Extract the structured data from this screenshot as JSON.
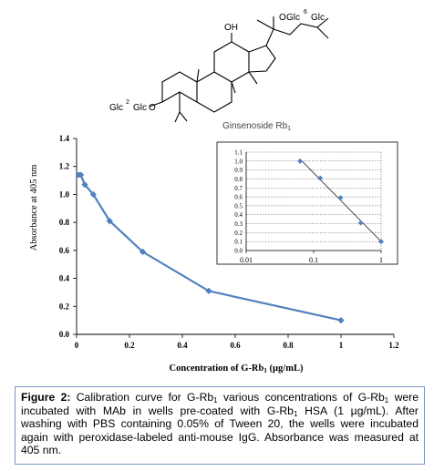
{
  "structure": {
    "compound_name": "Ginsenoside Rb",
    "compound_subscript": "1",
    "top_substituent_left": "O",
    "top_substituent_glc1": "Glc",
    "top_link": "6",
    "top_substituent_glc2": "Glc",
    "oh_label": "OH",
    "bottom_glc1": "Glc",
    "bottom_link": "2",
    "bottom_glc2": "Glc",
    "bottom_o": "O"
  },
  "chart_data": [
    {
      "type": "line",
      "title": "",
      "xlabel": "Concentration of G-Rb",
      "xlabel_subscript": "1",
      "xlabel_suffix": " (µg/mL)",
      "ylabel": "Absorbance at 405 nm",
      "xlim": [
        0,
        1.2
      ],
      "ylim": [
        0,
        1.4
      ],
      "x_ticks": [
        "0",
        "0.2",
        "0.4",
        "0.6",
        "0.8",
        "1",
        "1.2"
      ],
      "y_ticks": [
        "0.0",
        "0.2",
        "0.4",
        "0.6",
        "0.8",
        "1.0",
        "1.2",
        "1.4"
      ],
      "series": [
        {
          "x": [
            0.008,
            0.016,
            0.031,
            0.063,
            0.125,
            0.25,
            0.5,
            1.0
          ],
          "y": [
            1.14,
            1.14,
            1.07,
            1.0,
            0.81,
            0.59,
            0.31,
            0.1
          ],
          "color": "#4f81bd"
        }
      ],
      "grid": false
    },
    {
      "type": "scatter",
      "title": "",
      "xscale": "log",
      "xlim": [
        0.01,
        1
      ],
      "ylim": [
        0,
        1.1
      ],
      "x_ticks": [
        "0.01",
        "0.1",
        "1"
      ],
      "y_ticks": [
        "0.0",
        "0.1",
        "0.2",
        "0.3",
        "0.4",
        "0.5",
        "0.6",
        "0.7",
        "0.8",
        "0.9",
        "1.0",
        "1.1"
      ],
      "series": [
        {
          "x": [
            0.063,
            0.125,
            0.25,
            0.5,
            1.0
          ],
          "y": [
            1.0,
            0.81,
            0.59,
            0.31,
            0.1
          ],
          "color": "#4f81bd",
          "trendline": true
        }
      ],
      "grid": true
    }
  ],
  "caption": {
    "label": "Figure 2:",
    "part1": " Calibration curve for G-Rb",
    "sub1": "1",
    "part2": " various concentrations of G-Rb",
    "sub2": "1",
    "part3": " were incubated with MAb in wells pre-coated with G-Rb",
    "sub3": "1",
    "part4": " HSA (1 µg/mL). After washing with PBS containing 0.05% of Tween 20, the wells were incubated again with peroxidase-labeled anti-mouse IgG. Absorbance was measured at 405 nm."
  }
}
